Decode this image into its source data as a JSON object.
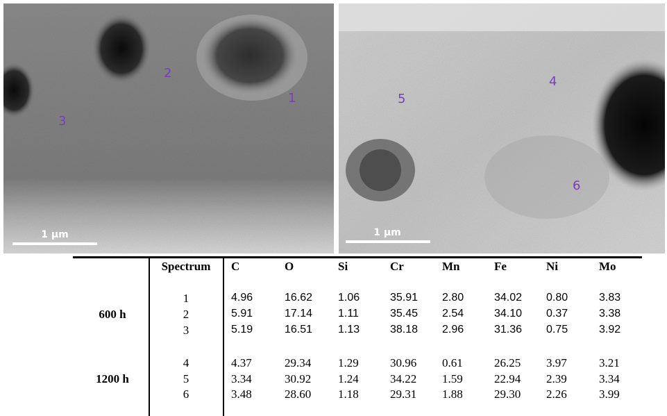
{
  "images": [
    {
      "scale_bar": "1 µm",
      "spots": [
        "1",
        "2",
        "3"
      ]
    },
    {
      "scale_bar": "1 µm",
      "spots": [
        "4",
        "5",
        "6"
      ]
    }
  ],
  "table": {
    "columns": [
      "Spectrum",
      "C",
      "O",
      "Si",
      "Cr",
      "Mn",
      "Fe",
      "Ni",
      "Mo"
    ],
    "groups": [
      {
        "label": "600 h",
        "rows": [
          [
            "1",
            "4.96",
            "16.62",
            "1.06",
            "35.91",
            "2.80",
            "34.02",
            "0.80",
            "3.83"
          ],
          [
            "2",
            "5.91",
            "17.14",
            "1.11",
            "35.45",
            "2.54",
            "34.10",
            "0.37",
            "3.38"
          ],
          [
            "3",
            "5.19",
            "16.51",
            "1.13",
            "38.18",
            "2.96",
            "31.36",
            "0.75",
            "3.92"
          ]
        ]
      },
      {
        "label": "1200 h",
        "rows": [
          [
            "4",
            "4.37",
            "29.34",
            "1.29",
            "30.96",
            "0.61",
            "26.25",
            "3.97",
            "3.21"
          ],
          [
            "5",
            "3.34",
            "30.92",
            "1.24",
            "34.22",
            "1.59",
            "22.94",
            "2.39",
            "3.34"
          ],
          [
            "6",
            "3.48",
            "28.60",
            "1.18",
            "29.31",
            "1.88",
            "29.30",
            "2.26",
            "3.99"
          ]
        ]
      }
    ]
  }
}
